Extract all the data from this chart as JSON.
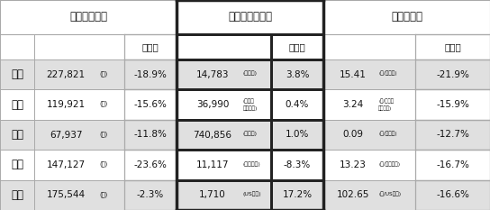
{
  "section_headers": [
    "日本円ベース",
    "現地通貨ベース",
    "為替レート"
  ],
  "col_header": "前年比",
  "countries": [
    "中国",
    "台湾",
    "韓国",
    "香港",
    "米国"
  ],
  "jpy_values": [
    "227,821",
    "119,921",
    "67,937",
    "147,127",
    "175,544"
  ],
  "jpy_units": [
    "(円)",
    "(円)",
    "(円)",
    "(円)",
    "(円)"
  ],
  "jpy_yoy": [
    "-18.9%",
    "-15.6%",
    "-11.8%",
    "-23.6%",
    "-2.3%"
  ],
  "local_values": [
    "14,783",
    "36,990",
    "740,856",
    "11,117",
    "1,710"
  ],
  "local_units": [
    "(人民元)",
    "(ニュー\n台湾ドル)",
    "(ウォン)",
    "(香港ドル)",
    "(USドル)"
  ],
  "local_yoy": [
    "3.8%",
    "0.4%",
    "1.0%",
    "-8.3%",
    "17.2%"
  ],
  "fx_values": [
    "15.41",
    "3.24",
    "0.09",
    "13.23",
    "102.65"
  ],
  "fx_units": [
    "(円/人民元)",
    "(円/ニュー\n台湾ドル)",
    "(円/ウォン)",
    "(円/香港ドル)",
    "(円/USドル)"
  ],
  "fx_yoy": [
    "-21.9%",
    "-15.9%",
    "-12.7%",
    "-16.7%",
    "-16.6%"
  ],
  "bg_odd": "#e0e0e0",
  "bg_even": "#ffffff",
  "border_color": "#aaaaaa",
  "highlight_border": "#222222",
  "fig_bg": "#ffffff"
}
